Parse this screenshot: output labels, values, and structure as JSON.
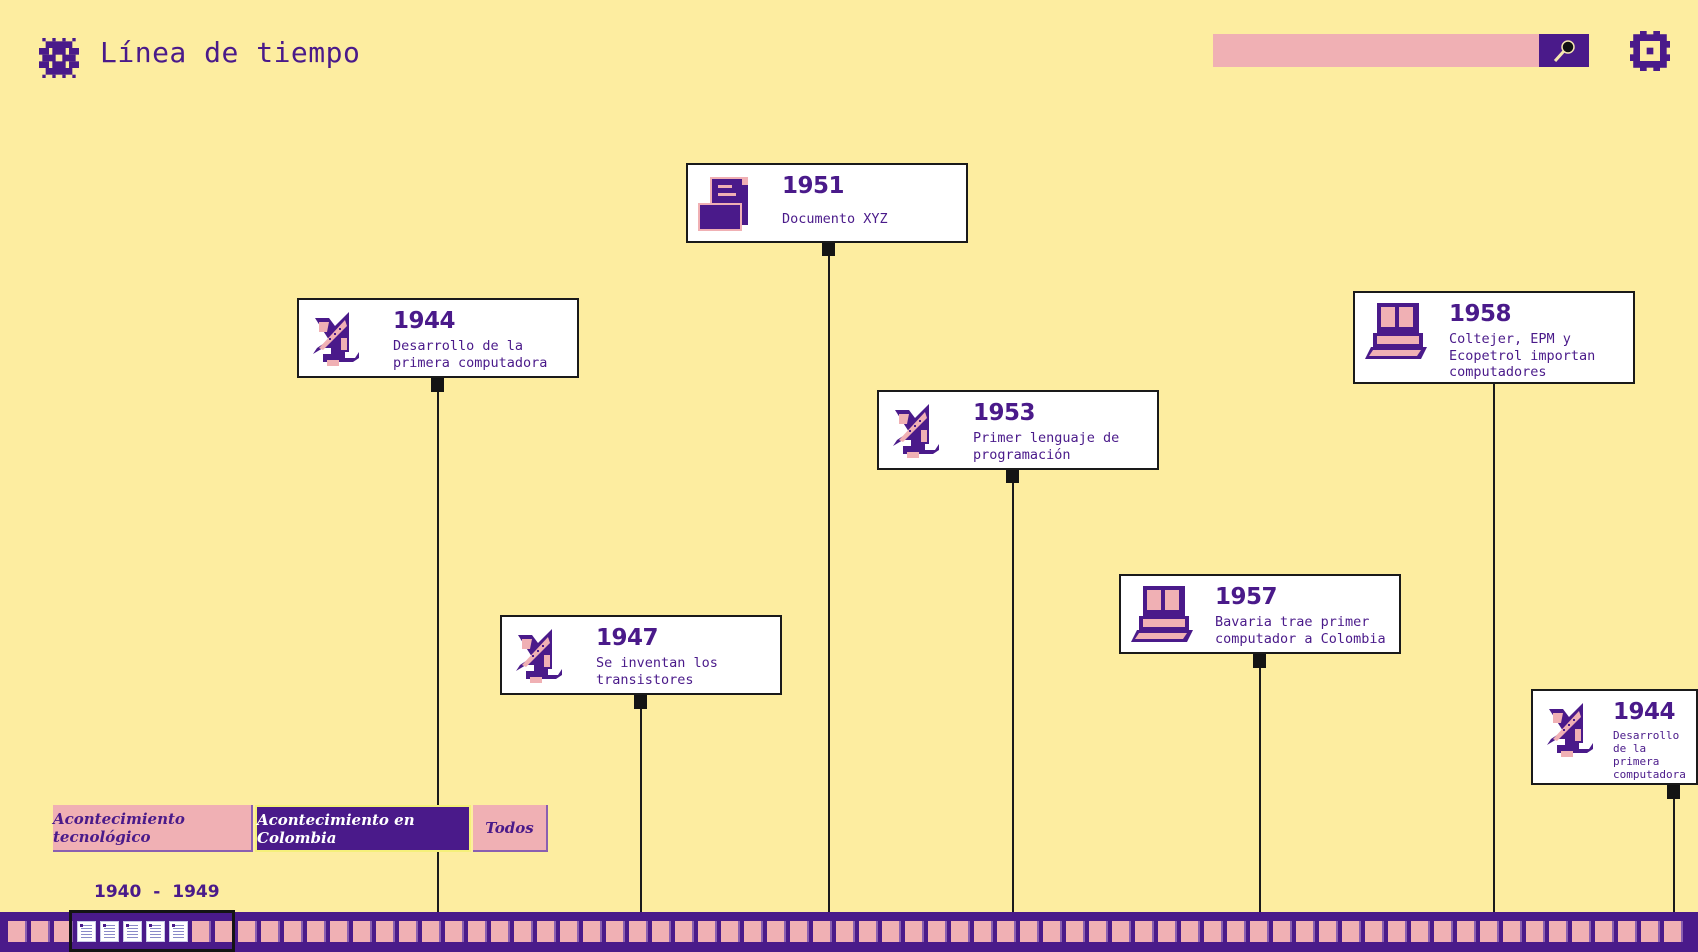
{
  "header": {
    "title": "Línea de tiempo",
    "logo_icon": "pixel-snowflake-icon",
    "search_placeholder": "",
    "search_value": "",
    "search_icon": "magnifier-icon",
    "settings_icon": "gear-icon"
  },
  "colors": {
    "background": "#fdeda0",
    "primary": "#4a1a8a",
    "accent": "#f0b0b4",
    "card": "#ffffff"
  },
  "events": [
    {
      "year": "1944",
      "description": "Desarrollo de la\nprimera computadora",
      "icon": "satellite-dish-icon"
    },
    {
      "year": "1951",
      "description": "Documento XYZ",
      "icon": "document-stack-icon"
    },
    {
      "year": "1953",
      "description": "Primer lenguaje de\nprogramación",
      "icon": "satellite-dish-icon"
    },
    {
      "year": "1958",
      "description": "Coltejer, EPM y\nEcopetrol importan\ncomputadores",
      "icon": "computer-icon"
    },
    {
      "year": "1947",
      "description": "Se inventan los\ntransistores",
      "icon": "satellite-dish-icon"
    },
    {
      "year": "1957",
      "description": "Bavaria trae primer\ncomputador a Colombia",
      "icon": "computer-icon"
    },
    {
      "year": "1944",
      "description": "Desarrollo de la\nprimera computadora",
      "icon": "satellite-dish-icon"
    }
  ],
  "filters": [
    {
      "label": "Acontecimiento tecnológico",
      "active": false
    },
    {
      "label": "Acontecimiento en Colombia",
      "active": true
    },
    {
      "label": "Todos",
      "active": false
    }
  ],
  "range": {
    "start": "1940",
    "separator": "-",
    "end": "1949"
  }
}
